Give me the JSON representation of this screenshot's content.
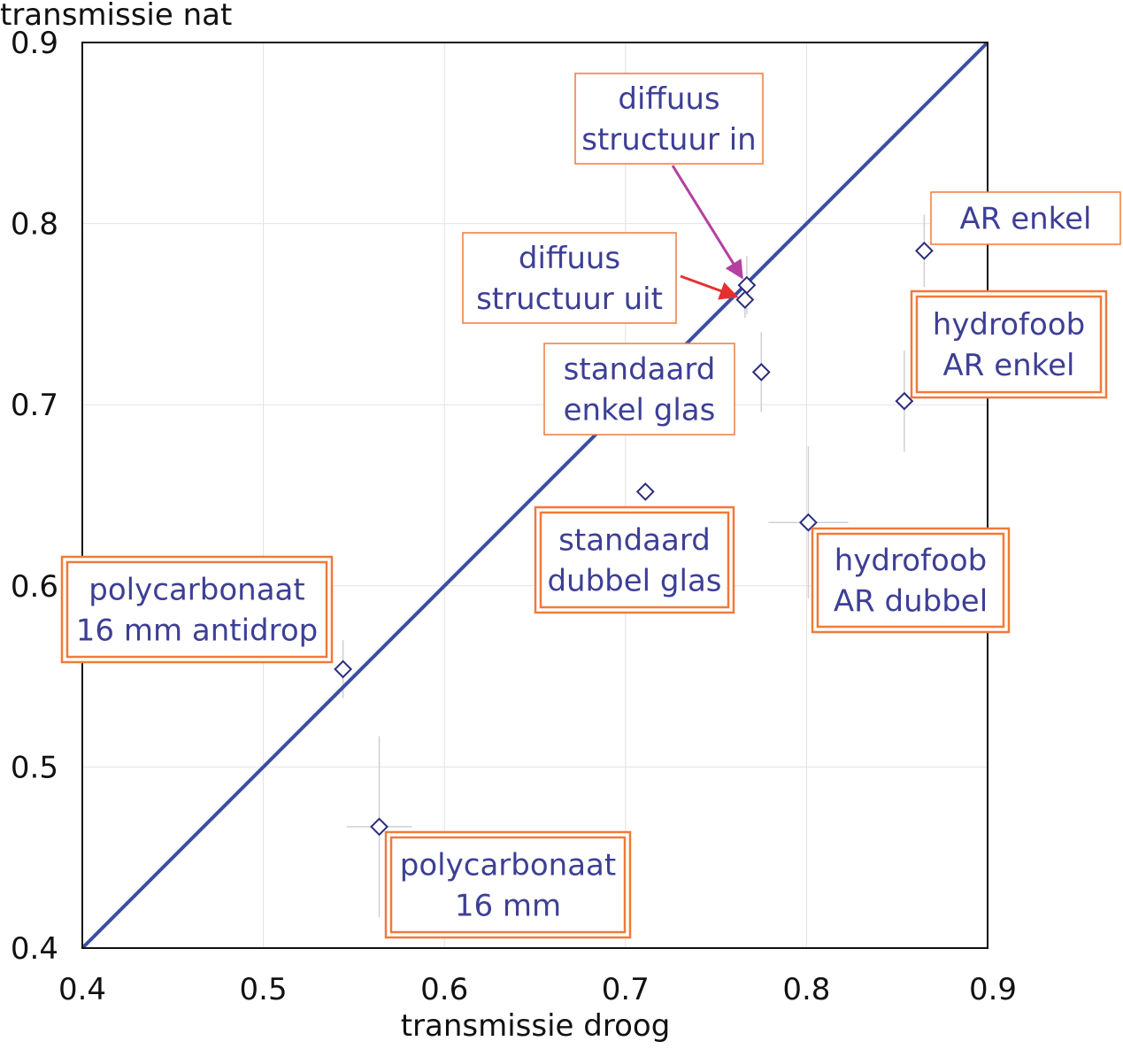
{
  "chart_data": {
    "type": "scatter",
    "xlabel": "transmissie droog",
    "ylabel": "transmissie nat",
    "xlim": [
      0.4,
      0.9
    ],
    "ylim": [
      0.4,
      0.9
    ],
    "xticks": [
      "0.4",
      "0.5",
      "0.6",
      "0.7",
      "0.8",
      "0.9"
    ],
    "yticks": [
      "0.4",
      "0.5",
      "0.6",
      "0.7",
      "0.8",
      "0.9"
    ],
    "grid": true,
    "reference_line": {
      "from": [
        0.4,
        0.4
      ],
      "to": [
        0.9,
        0.9
      ],
      "color": "#3a4fa0"
    },
    "marker": "open-diamond",
    "marker_color": "#2b2d7a",
    "text_color": "#3d3f95",
    "callout_border_color": "#f07a3a",
    "points": [
      {
        "x": 0.865,
        "y": 0.785,
        "ex": 0.0,
        "ey": 0.02
      },
      {
        "x": 0.767,
        "y": 0.766,
        "ex": 0.0,
        "ey": 0.016
      },
      {
        "x": 0.766,
        "y": 0.758,
        "ex": 0.0,
        "ey": 0.01
      },
      {
        "x": 0.775,
        "y": 0.718,
        "ex": 0.0,
        "ey": 0.022
      },
      {
        "x": 0.854,
        "y": 0.702,
        "ex": 0.0,
        "ey": 0.028
      },
      {
        "x": 0.711,
        "y": 0.652,
        "ex": 0.0,
        "ey": 0.0
      },
      {
        "x": 0.801,
        "y": 0.635,
        "ex": 0.022,
        "ey": 0.042
      },
      {
        "x": 0.544,
        "y": 0.554,
        "ex": 0.0,
        "ey": 0.016
      },
      {
        "x": 0.564,
        "y": 0.467,
        "ex": 0.018,
        "ey": 0.05
      }
    ],
    "annotations": [
      {
        "lines": [
          "diffuus",
          "structuur in"
        ],
        "style": "single",
        "arrow_color": "#b440a0",
        "arrow_to": [
          0.767,
          0.766
        ]
      },
      {
        "lines": [
          "AR  enkel"
        ],
        "style": "single"
      },
      {
        "lines": [
          "diffuus",
          "structuur uit"
        ],
        "style": "single",
        "arrow_color": "#e63030",
        "arrow_to": [
          0.766,
          0.758
        ]
      },
      {
        "lines": [
          "hydrofoob",
          "AR  enkel"
        ],
        "style": "double"
      },
      {
        "lines": [
          "standaard",
          "enkel glas"
        ],
        "style": "single"
      },
      {
        "lines": [
          "standaard",
          "dubbel glas"
        ],
        "style": "double"
      },
      {
        "lines": [
          "hydrofoob",
          "AR  dubbel"
        ],
        "style": "double"
      },
      {
        "lines": [
          "polycarbonaat",
          "16 mm antidrop"
        ],
        "style": "double"
      },
      {
        "lines": [
          "polycarbonaat",
          "16 mm"
        ],
        "style": "double"
      }
    ]
  }
}
